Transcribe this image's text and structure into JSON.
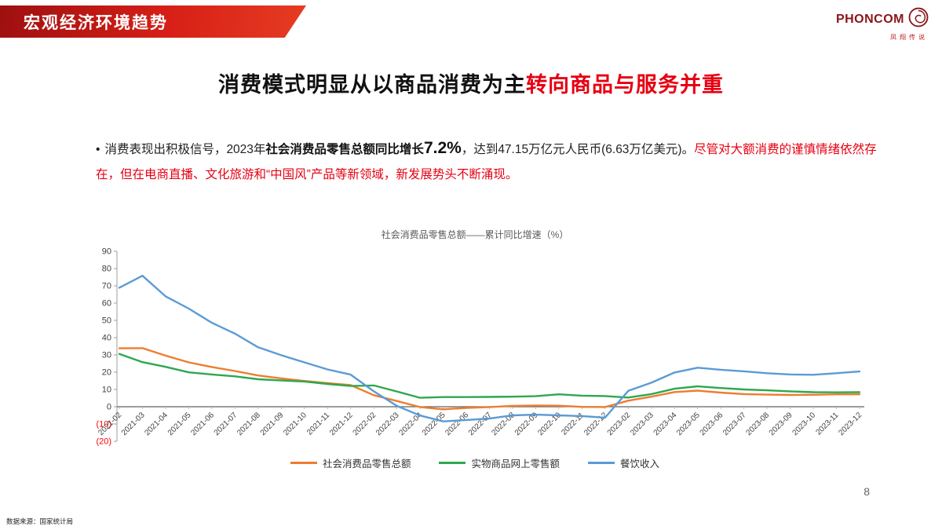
{
  "slide": {
    "banner_title": "宏观经济环境趋势",
    "logo": {
      "name": "PHONCOM",
      "subtitle": "凤翔传说"
    },
    "title": {
      "black": "消费模式明显从以商品消费为主",
      "red": "转向商品与服务并重"
    },
    "bullet": {
      "part1": "消费表现出积极信号，2023年",
      "part2_bold": "社会消费品零售总额同比增长",
      "part3_big": "7.2%",
      "part4": "，达到47.15万亿元人民币(6.63万亿美元)。",
      "part5_red": "尽管对大额消费的谨慎情绪依然存在，但在电商直播、文化旅游和“中国风”产品等新领域，新发展势头不断涌现。"
    },
    "footer": {
      "source": "数据来源：国家统计局",
      "page_number": "8"
    },
    "accent_red": "#E60012"
  },
  "chart_data": {
    "type": "line",
    "title": "社会消费品零售总额——累计同比增速（%）",
    "ylim": [
      -20,
      90
    ],
    "ytick_step": 10,
    "grid": false,
    "legend_position": "bottom",
    "negative_tick_color": "#FF0000",
    "categories": [
      "2021-02",
      "2021-03",
      "2021-04",
      "2021-05",
      "2021-06",
      "2021-07",
      "2021-08",
      "2021-09",
      "2021-10",
      "2021-11",
      "2021-12",
      "2022-02",
      "2022-03",
      "2022-04",
      "2022-05",
      "2022-06",
      "2022-07",
      "2022-08",
      "2022-09",
      "2022-10",
      "2022-11",
      "2022-12",
      "2023-02",
      "2023-03",
      "2023-04",
      "2023-05",
      "2023-06",
      "2023-07",
      "2023-08",
      "2023-09",
      "2023-10",
      "2023-11",
      "2023-12"
    ],
    "series": [
      {
        "name": "社会消费品零售总额",
        "color": "#ED7D31",
        "values": [
          33.8,
          33.9,
          29.6,
          25.7,
          23.0,
          20.7,
          18.1,
          16.4,
          14.9,
          13.7,
          12.5,
          6.7,
          3.3,
          -0.2,
          -1.5,
          -0.7,
          -0.2,
          0.5,
          0.7,
          0.6,
          -0.1,
          -0.2,
          3.5,
          5.8,
          8.5,
          9.3,
          8.2,
          7.3,
          7.0,
          6.8,
          6.9,
          7.2,
          7.2
        ]
      },
      {
        "name": "实物商品网上零售额",
        "color": "#2EA84E",
        "values": [
          30.6,
          25.8,
          23.1,
          19.9,
          18.7,
          17.6,
          15.9,
          15.2,
          14.6,
          13.2,
          12.0,
          12.3,
          8.8,
          5.2,
          5.6,
          5.6,
          5.7,
          5.8,
          6.1,
          7.2,
          6.4,
          6.2,
          5.3,
          7.3,
          10.4,
          11.8,
          10.8,
          10.0,
          9.5,
          8.9,
          8.4,
          8.3,
          8.4
        ]
      },
      {
        "name": "餐饮收入",
        "color": "#5B9BD5",
        "values": [
          68.9,
          75.8,
          63.9,
          56.8,
          48.6,
          42.3,
          34.4,
          29.8,
          25.7,
          21.6,
          18.6,
          8.9,
          0.5,
          -5.1,
          -8.5,
          -7.7,
          -6.8,
          -5.0,
          -4.6,
          -5.0,
          -5.4,
          -6.3,
          9.2,
          13.9,
          19.8,
          22.6,
          21.4,
          20.5,
          19.4,
          18.7,
          18.5,
          19.4,
          20.4
        ]
      }
    ]
  }
}
